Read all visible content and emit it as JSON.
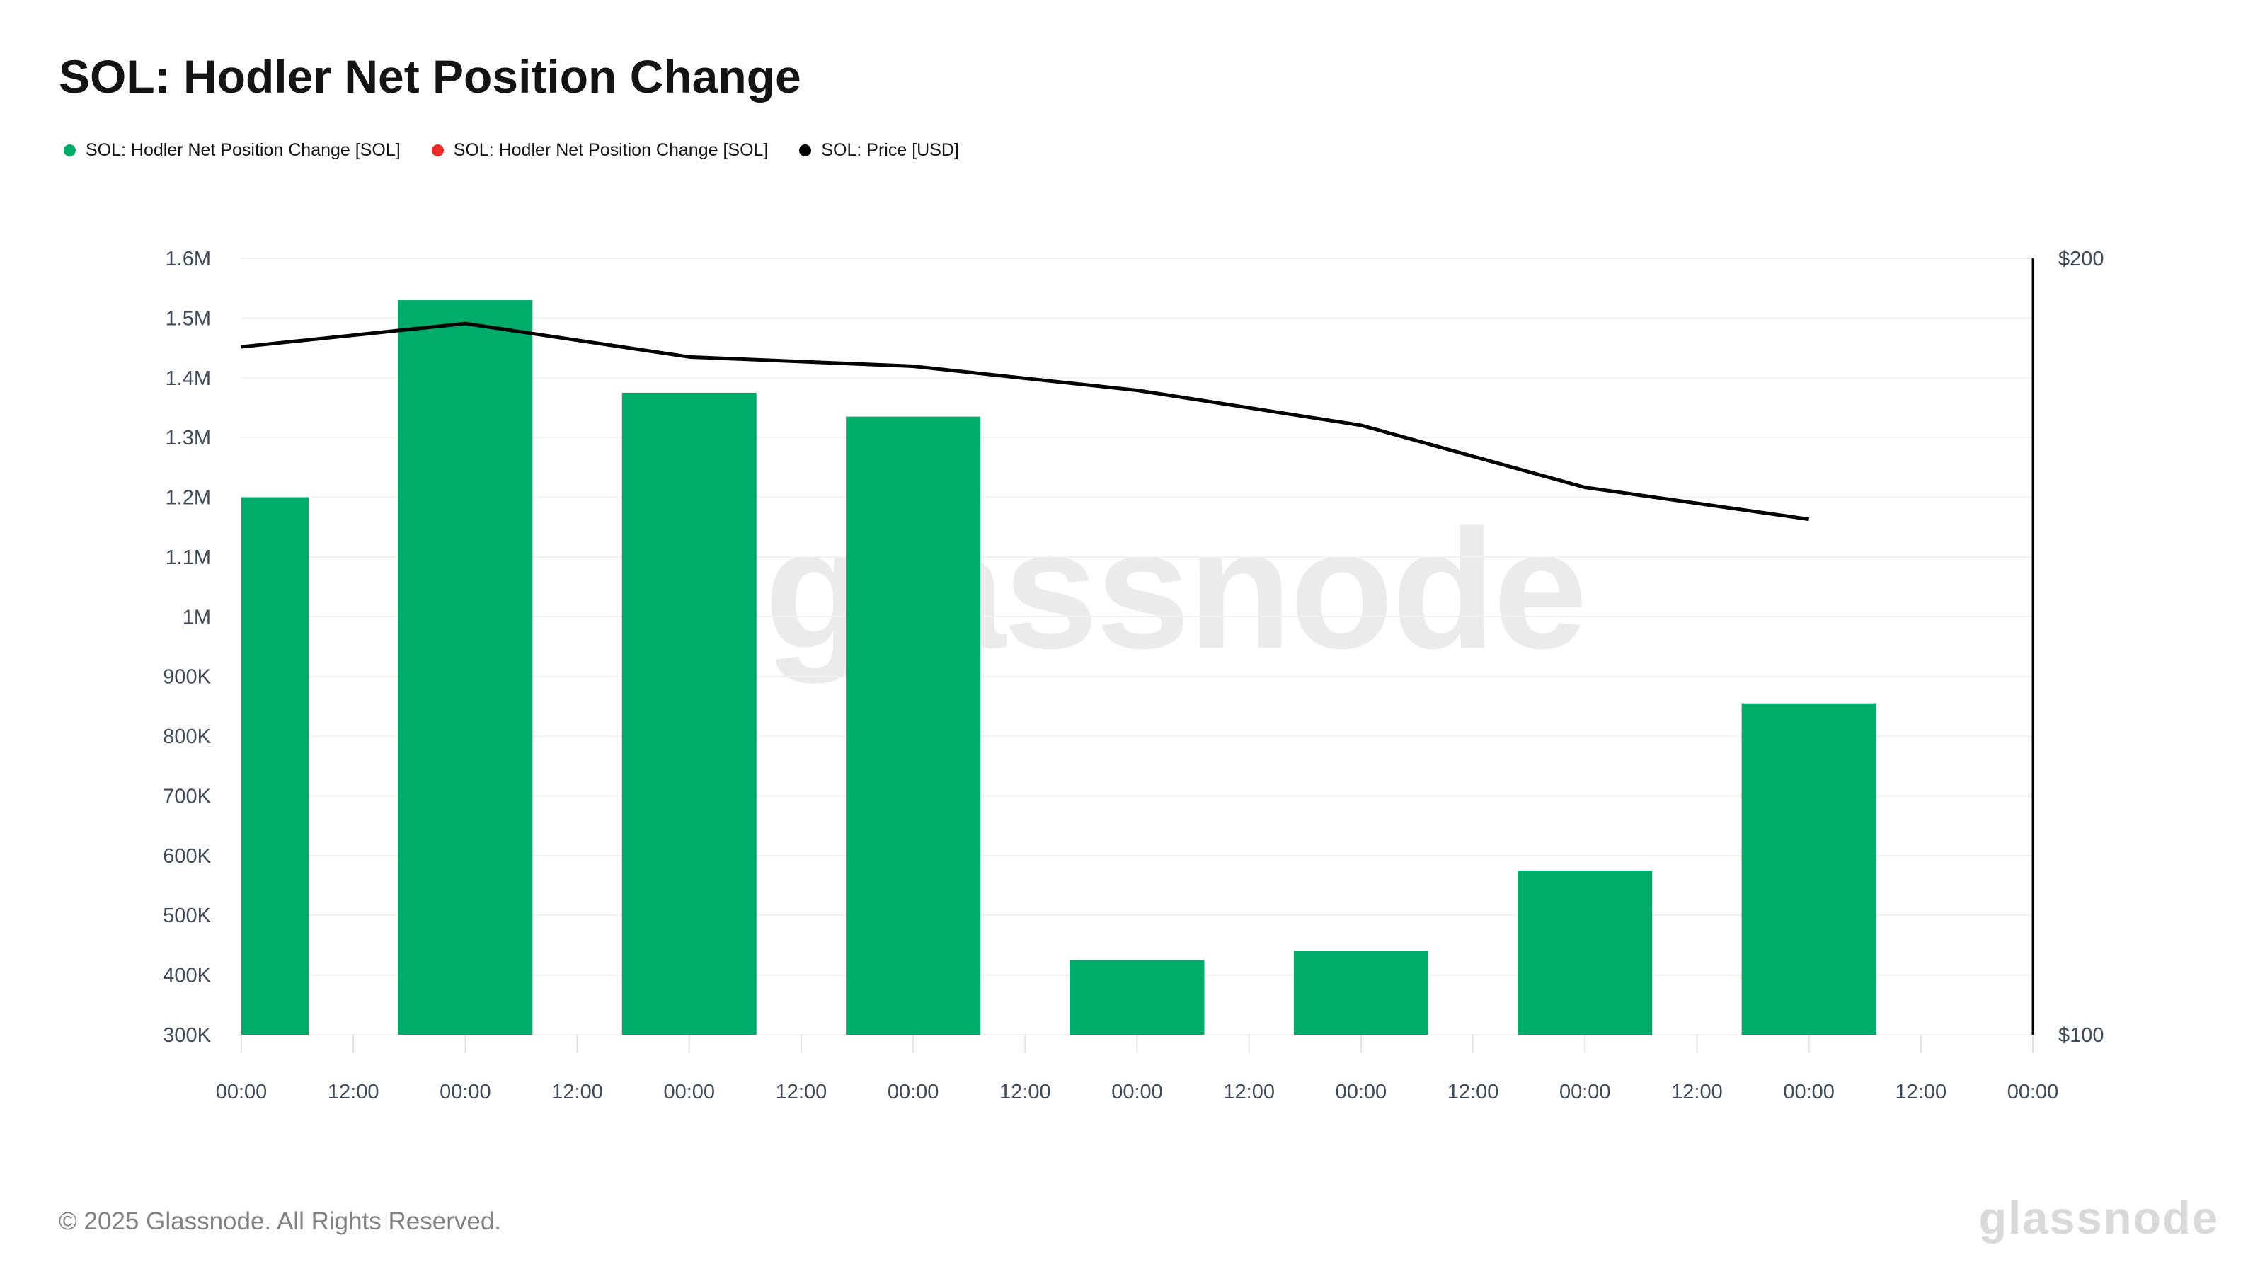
{
  "page": {
    "title": "SOL: Hodler Net Position Change",
    "footer_copyright": "© 2025 Glassnode. All Rights Reserved.",
    "footer_logo": "glassnode",
    "watermark": "glassnode"
  },
  "legend": {
    "items": [
      {
        "label": "SOL: Hodler Net Position Change [SOL]",
        "color": "#00ac69",
        "marker": "dot"
      },
      {
        "label": "SOL: Hodler Net Position Change [SOL]",
        "color": "#f02929",
        "marker": "dot"
      },
      {
        "label": "SOL: Price [USD]",
        "color": "#000000",
        "marker": "dot"
      }
    ]
  },
  "chart_data": {
    "type": "bar+line",
    "title": "SOL: Hodler Net Position Change",
    "grid": true,
    "x_tick_labels": [
      "00:00",
      "12:00",
      "00:00",
      "12:00",
      "00:00",
      "12:00",
      "00:00",
      "12:00",
      "00:00",
      "12:00",
      "00:00",
      "12:00",
      "00:00",
      "12:00",
      "00:00",
      "12:00",
      "00:00"
    ],
    "left_axis": {
      "tick_labels": [
        "1.6M",
        "1.5M",
        "1.4M",
        "1.3M",
        "1.2M",
        "1.1M",
        "1M",
        "900K",
        "800K",
        "700K",
        "600K",
        "500K",
        "400K",
        "300K"
      ],
      "min": 300000,
      "max": 1600000
    },
    "right_axis": {
      "tick_labels": [
        "$200",
        "$100"
      ],
      "min": 100,
      "max": 200
    },
    "bar_series": {
      "name": "SOL: Hodler Net Position Change [SOL]",
      "color": "#00ac69",
      "baseline": 300000,
      "points": [
        {
          "tick": 0,
          "value": 1200000
        },
        {
          "tick": 2,
          "value": 1530000
        },
        {
          "tick": 4,
          "value": 1375000
        },
        {
          "tick": 6,
          "value": 1335000
        },
        {
          "tick": 8,
          "value": 425000
        },
        {
          "tick": 10,
          "value": 440000
        },
        {
          "tick": 12,
          "value": 575000
        },
        {
          "tick": 14,
          "value": 855000
        }
      ]
    },
    "line_series": {
      "name": "SOL: Price [USD]",
      "color": "#000000",
      "points": [
        {
          "tick": 0,
          "value": 188.6
        },
        {
          "tick": 2,
          "value": 191.6
        },
        {
          "tick": 4,
          "value": 187.3
        },
        {
          "tick": 6,
          "value": 186.1
        },
        {
          "tick": 8,
          "value": 183.0
        },
        {
          "tick": 10,
          "value": 178.5
        },
        {
          "tick": 12,
          "value": 170.5
        },
        {
          "tick": 14,
          "value": 166.4
        }
      ]
    }
  }
}
